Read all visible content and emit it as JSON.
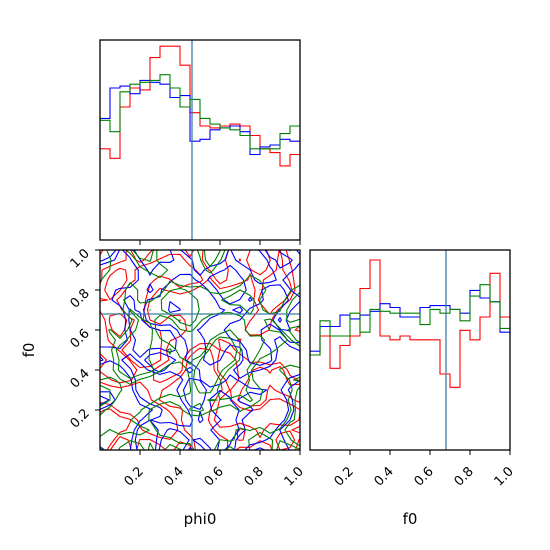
{
  "chart_data": {
    "type": "corner",
    "parameters": [
      "phi0",
      "f0"
    ],
    "truth": {
      "phi0": 0.46,
      "f0": 0.68
    },
    "truth_color": "#3b7ea1",
    "series_colors": [
      "#ff0000",
      "#0000ff",
      "#008000"
    ],
    "xlabels": {
      "phi0": "phi0",
      "f0": "f0"
    },
    "ylabels": {
      "f0": "f0"
    },
    "ticks": {
      "phi0_x": [
        "0.2",
        "0.4",
        "0.6",
        "0.8",
        "1.0"
      ],
      "f0_x": [
        "0.2",
        "0.4",
        "0.6",
        "0.8",
        "1.0"
      ],
      "f0_y": [
        "0.2",
        "0.4",
        "0.6",
        "0.8",
        "1.0"
      ]
    },
    "xlim": [
      0,
      1
    ],
    "ylim": [
      0,
      1
    ],
    "hist_phi0": {
      "bins": 20,
      "series": [
        {
          "color": "#ff0000",
          "values": [
            0.48,
            0.43,
            0.7,
            0.8,
            0.79,
            0.96,
            1.02,
            1.02,
            0.92,
            0.67,
            0.6,
            0.59,
            0.6,
            0.61,
            0.6,
            0.55,
            0.48,
            0.46,
            0.39,
            0.45
          ]
        },
        {
          "color": "#0000ff",
          "values": [
            0.64,
            0.8,
            0.81,
            0.77,
            0.84,
            0.83,
            0.82,
            0.75,
            0.76,
            0.52,
            0.53,
            0.58,
            0.59,
            0.6,
            0.57,
            0.45,
            0.49,
            0.5,
            0.53,
            0.52
          ]
        },
        {
          "color": "#008000",
          "values": [
            0.63,
            0.57,
            0.78,
            0.82,
            0.83,
            0.84,
            0.87,
            0.8,
            0.7,
            0.74,
            0.64,
            0.61,
            0.59,
            0.58,
            0.55,
            0.48,
            0.48,
            0.48,
            0.56,
            0.6
          ]
        }
      ]
    },
    "hist_f0": {
      "bins": 20,
      "series": [
        {
          "color": "#ff0000",
          "values": [
            0.5,
            0.6,
            0.43,
            0.55,
            0.6,
            0.85,
            1.0,
            0.6,
            0.58,
            0.6,
            0.58,
            0.58,
            0.58,
            0.4,
            0.33,
            0.63,
            0.58,
            0.7,
            0.93,
            0.7
          ]
        },
        {
          "color": "#0000ff",
          "values": [
            0.52,
            0.65,
            0.65,
            0.71,
            0.69,
            0.71,
            0.73,
            0.77,
            0.75,
            0.7,
            0.7,
            0.75,
            0.76,
            0.76,
            0.74,
            0.72,
            0.84,
            0.8,
            0.78,
            0.62
          ]
        },
        {
          "color": "#008000",
          "values": [
            0.5,
            0.68,
            0.6,
            0.6,
            0.72,
            0.62,
            0.74,
            0.73,
            0.72,
            0.72,
            0.72,
            0.66,
            0.74,
            0.72,
            0.74,
            0.68,
            0.81,
            0.87,
            0.78,
            0.64
          ]
        }
      ]
    },
    "contour_phi0_f0": {
      "series": [
        {
          "color": "#ff0000"
        },
        {
          "color": "#0000ff"
        },
        {
          "color": "#008000"
        }
      ]
    }
  }
}
